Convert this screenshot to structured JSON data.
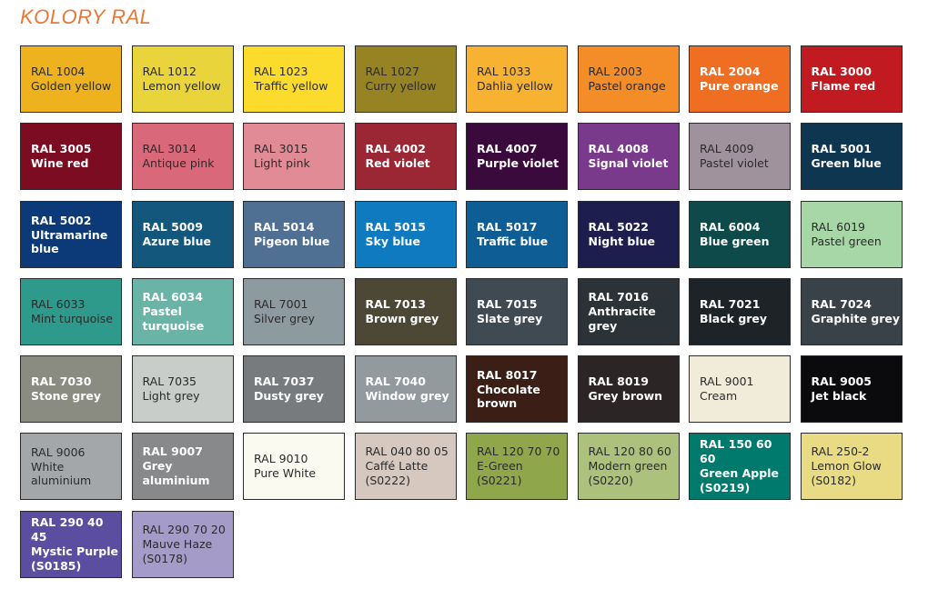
{
  "title": "KOLORY RAL",
  "swatches": [
    {
      "code": "RAL 1004",
      "name": "Golden yellow",
      "color": "#efb21f",
      "text": "dark"
    },
    {
      "code": "RAL 1012",
      "name": "Lemon yellow",
      "color": "#e9d53b",
      "text": "dark"
    },
    {
      "code": "RAL 1023",
      "name": "Traffic yellow",
      "color": "#fbdb2b",
      "text": "dark"
    },
    {
      "code": "RAL 1027",
      "name": "Curry yellow",
      "color": "#968324",
      "text": "dark"
    },
    {
      "code": "RAL 1033",
      "name": "Dahlia yellow",
      "color": "#f8b232",
      "text": "dark"
    },
    {
      "code": "RAL 2003",
      "name": "Pastel orange",
      "color": "#f48c28",
      "text": "dark"
    },
    {
      "code": "RAL 2004",
      "name": "Pure orange",
      "color": "#ef6e21",
      "text": "light"
    },
    {
      "code": "RAL 3000",
      "name": "Flame red",
      "color": "#c11a20",
      "text": "light"
    },
    {
      "code": "RAL 3005",
      "name": "Wine red",
      "color": "#7c0c21",
      "text": "light"
    },
    {
      "code": "RAL 3014",
      "name": "Antique pink",
      "color": "#d9687a",
      "text": "dark"
    },
    {
      "code": "RAL 3015",
      "name": "Light pink",
      "color": "#e08b96",
      "text": "dark"
    },
    {
      "code": "RAL 4002",
      "name": "Red violet",
      "color": "#9b2734",
      "text": "light"
    },
    {
      "code": "RAL 4007",
      "name": "Purple violet",
      "color": "#3a0a3d",
      "text": "light"
    },
    {
      "code": "RAL 4008",
      "name": "Signal violet",
      "color": "#7a3a8c",
      "text": "light"
    },
    {
      "code": "RAL 4009",
      "name": "Pastel violet",
      "color": "#a0929c",
      "text": "dark"
    },
    {
      "code": "RAL 5001",
      "name": "Green blue",
      "color": "#0f3650",
      "text": "light"
    },
    {
      "code": "RAL 5002",
      "name": "Ultramarine blue",
      "color": "#0c3a78",
      "text": "light"
    },
    {
      "code": "RAL 5009",
      "name": "Azure blue",
      "color": "#13577d",
      "text": "light"
    },
    {
      "code": "RAL 5014",
      "name": "Pigeon blue",
      "color": "#4f6f93",
      "text": "light"
    },
    {
      "code": "RAL 5015",
      "name": "Sky blue",
      "color": "#0f7ac0",
      "text": "light"
    },
    {
      "code": "RAL 5017",
      "name": "Traffic blue",
      "color": "#0e5d94",
      "text": "light"
    },
    {
      "code": "RAL 5022",
      "name": "Night blue",
      "color": "#1d1d4e",
      "text": "light"
    },
    {
      "code": "RAL 6004",
      "name": "Blue green",
      "color": "#0d4a49",
      "text": "light"
    },
    {
      "code": "RAL 6019",
      "name": "Pastel green",
      "color": "#a8d7a7",
      "text": "dark"
    },
    {
      "code": "RAL 6033",
      "name": "Mint turquoise",
      "color": "#2d9a8c",
      "text": "dark"
    },
    {
      "code": "RAL 6034",
      "name": "Pastel turquoise",
      "color": "#69b4a6",
      "text": "light"
    },
    {
      "code": "RAL 7001",
      "name": "Silver grey",
      "color": "#8d9aa0",
      "text": "dark"
    },
    {
      "code": "RAL 7013",
      "name": "Brown grey",
      "color": "#4d4735",
      "text": "light"
    },
    {
      "code": "RAL 7015",
      "name": "Slate grey",
      "color": "#404a52",
      "text": "light"
    },
    {
      "code": "RAL 7016",
      "name": "Anthracite grey",
      "color": "#2b3338",
      "text": "light"
    },
    {
      "code": "RAL 7021",
      "name": "Black grey",
      "color": "#1e2328",
      "text": "light"
    },
    {
      "code": "RAL 7024",
      "name": "Graphite grey",
      "color": "#3a4249",
      "text": "light"
    },
    {
      "code": "RAL 7030",
      "name": "Stone grey",
      "color": "#8a8c82",
      "text": "light"
    },
    {
      "code": "RAL 7035",
      "name": "Light grey",
      "color": "#c8cdc9",
      "text": "dark"
    },
    {
      "code": "RAL 7037",
      "name": "Dusty grey",
      "color": "#787b7d",
      "text": "light"
    },
    {
      "code": "RAL 7040",
      "name": "Window grey",
      "color": "#939a9e",
      "text": "light"
    },
    {
      "code": "RAL 8017",
      "name": "Chocolate brown",
      "color": "#3b1f17",
      "text": "light"
    },
    {
      "code": "RAL 8019",
      "name": "Grey brown",
      "color": "#2b2526",
      "text": "light"
    },
    {
      "code": "RAL 9001",
      "name": "Cream",
      "color": "#f1ecd9",
      "text": "dark"
    },
    {
      "code": "RAL 9005",
      "name": "Jet black",
      "color": "#0b0b0d",
      "text": "light"
    },
    {
      "code": "RAL 9006",
      "name": "White aluminium",
      "color": "#a4a7a9",
      "text": "dark"
    },
    {
      "code": "RAL 9007",
      "name": "Grey aluminium",
      "color": "#87898a",
      "text": "light"
    },
    {
      "code": "RAL 9010",
      "name": "Pure White",
      "color": "#fbfaf1",
      "text": "dark"
    },
    {
      "code": "RAL 040 80 05",
      "name": "Caffé Latte",
      "sub": "(S0222)",
      "color": "#d6c8be",
      "text": "dark"
    },
    {
      "code": "RAL 120 70 70",
      "name": "E-Green",
      "sub": "(S0221)",
      "color": "#8fa64a",
      "text": "dark"
    },
    {
      "code": "RAL 120 80 60",
      "name": "Modern green",
      "sub": "(S0220)",
      "color": "#acc27c",
      "text": "dark"
    },
    {
      "code": "RAL 150 60 60",
      "name": "Green Apple",
      "sub": "(S0219)",
      "color": "#007a6d",
      "text": "light"
    },
    {
      "code": "RAL 250-2",
      "name": "Lemon Glow",
      "sub": "(S0182)",
      "color": "#e8db84",
      "text": "dark"
    },
    {
      "code": "RAL 290 40 45",
      "name": "Mystic Purple",
      "sub": "(S0185)",
      "color": "#5b4ea0",
      "text": "light"
    },
    {
      "code": "RAL 290 70 20",
      "name": "Mauve Haze",
      "sub": "(S0178)",
      "color": "#a59bc9",
      "text": "dark"
    }
  ]
}
